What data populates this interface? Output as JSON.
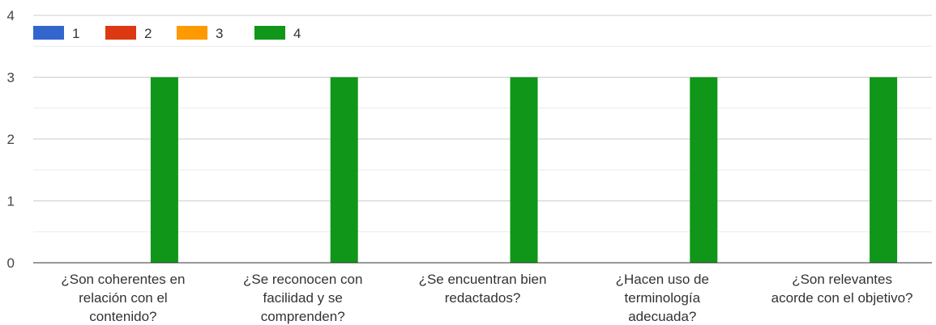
{
  "chart_data": {
    "type": "bar",
    "title": "",
    "xlabel": "",
    "ylabel": "",
    "ylim": [
      0,
      4
    ],
    "yticks": [
      0,
      1,
      2,
      3,
      4
    ],
    "grid": true,
    "legend_position": "top-left",
    "categories": [
      [
        "¿Son coherentes en",
        "relación con el",
        "contenido?"
      ],
      [
        "¿Se reconocen con",
        "facilidad y se",
        "comprenden?"
      ],
      [
        "¿Se encuentran bien",
        "redactados?"
      ],
      [
        "¿Hacen uso de",
        "terminología",
        "adecuada?"
      ],
      [
        "¿Son relevantes",
        "acorde con el objetivo?"
      ]
    ],
    "series": [
      {
        "name": "1",
        "color": "#3366cc",
        "values": [
          0,
          0,
          0,
          0,
          0
        ]
      },
      {
        "name": "2",
        "color": "#dc3912",
        "values": [
          0,
          0,
          0,
          0,
          0
        ]
      },
      {
        "name": "3",
        "color": "#ff9900",
        "values": [
          0,
          0,
          0,
          0,
          0
        ]
      },
      {
        "name": "4",
        "color": "#109618",
        "values": [
          3,
          3,
          3,
          3,
          3
        ]
      }
    ]
  }
}
